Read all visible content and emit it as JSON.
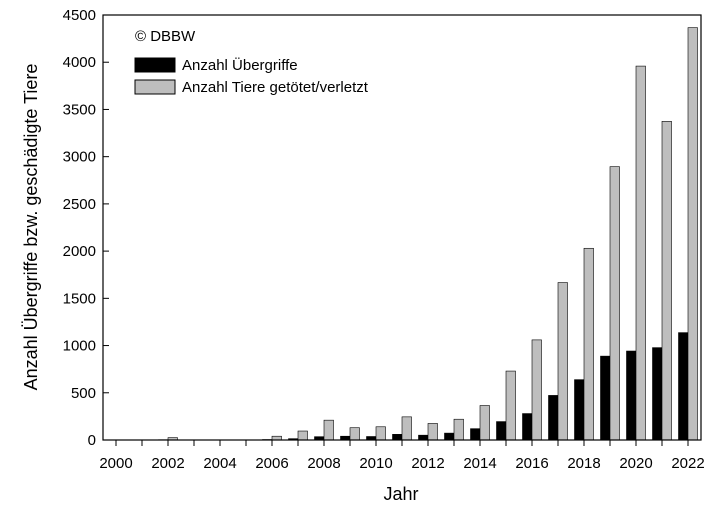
{
  "chart_data": {
    "type": "bar",
    "copyright": "© DBBW",
    "xlabel": "Jahr",
    "ylabel": "Anzahl Übergriffe bzw. geschädigte Tiere",
    "ylim": [
      0,
      4500
    ],
    "yticks": [
      0,
      500,
      1000,
      1500,
      2000,
      2500,
      3000,
      3500,
      4000,
      4500
    ],
    "x_tick_labels": [
      "2000",
      "2002",
      "2004",
      "2006",
      "2008",
      "2010",
      "2012",
      "2014",
      "2016",
      "2018",
      "2020",
      "2022"
    ],
    "categories": [
      "2000",
      "2001",
      "2002",
      "2003",
      "2004",
      "2005",
      "2006",
      "2007",
      "2008",
      "2009",
      "2010",
      "2011",
      "2012",
      "2013",
      "2014",
      "2015",
      "2016",
      "2017",
      "2018",
      "2019",
      "2020",
      "2021",
      "2022"
    ],
    "legend_position": "top-left",
    "grid": false,
    "series": [
      {
        "name": "Anzahl Übergriffe",
        "color": "#000000",
        "values": [
          0,
          0,
          3,
          0,
          0,
          0,
          5,
          14,
          35,
          40,
          37,
          60,
          51,
          73,
          120,
          195,
          280,
          472,
          639,
          888,
          942,
          978,
          1137
        ]
      },
      {
        "name": "Anzahl Tiere getötet/verletzt",
        "color": "#bebebe",
        "values": [
          0,
          0,
          25,
          0,
          0,
          0,
          40,
          95,
          210,
          130,
          140,
          245,
          175,
          220,
          365,
          730,
          1060,
          1667,
          2030,
          2894,
          3959,
          3374,
          4366
        ]
      }
    ]
  }
}
